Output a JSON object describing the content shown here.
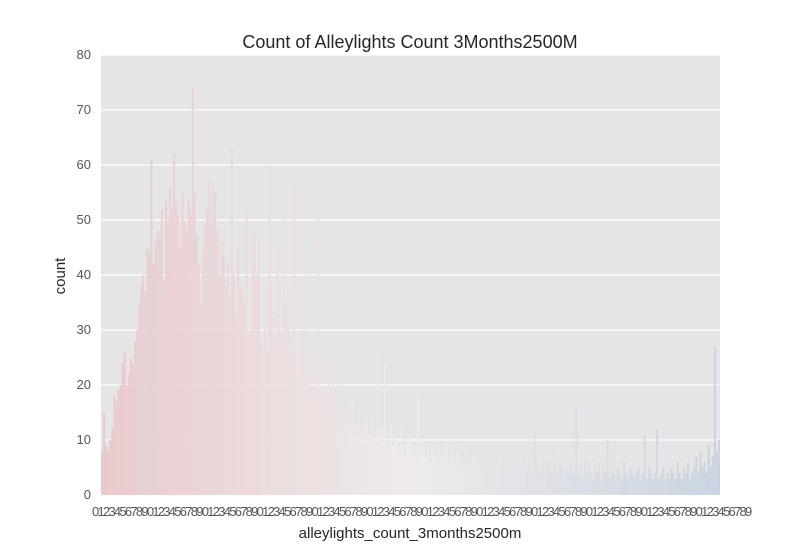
{
  "chart_data": {
    "type": "bar",
    "title": "Count of Alleylights Count 3Months2500M",
    "xlabel": "alleylights_count_3months2500m",
    "ylabel": "count",
    "ylim": [
      0,
      80
    ],
    "yticks": [
      0,
      10,
      20,
      30,
      40,
      50,
      60,
      70,
      80
    ],
    "x_tick_labels_note": "dense overlapping tick labels (unreadable)",
    "grid": true,
    "legend": "none",
    "values": [
      8,
      15,
      9,
      8,
      10,
      12,
      18,
      17,
      19,
      20,
      24,
      26,
      20,
      22,
      25,
      24,
      28,
      30,
      35,
      38,
      40,
      37,
      45,
      44,
      61,
      42,
      46,
      48,
      47,
      52,
      39,
      54,
      50,
      56,
      52,
      62,
      53,
      51,
      45,
      55,
      50,
      48,
      54,
      51,
      74,
      55,
      47,
      42,
      35,
      44,
      49,
      52,
      57,
      50,
      56,
      55,
      48,
      40,
      46,
      44,
      38,
      42,
      36,
      63,
      40,
      33,
      45,
      38,
      37,
      35,
      52,
      29,
      30,
      42,
      48,
      40,
      47,
      28,
      25,
      31,
      26,
      60,
      38,
      32,
      27,
      45,
      33,
      29,
      50,
      35,
      38,
      30,
      28,
      57,
      26,
      22,
      24,
      30,
      25,
      45,
      20,
      25,
      18,
      22,
      17,
      55,
      15,
      20,
      19,
      18,
      25,
      16,
      22,
      14,
      20,
      18,
      26,
      12,
      15,
      14,
      17,
      13,
      18,
      11,
      12,
      16,
      10,
      13,
      15,
      12,
      11,
      14,
      10,
      9,
      26,
      11,
      12,
      24,
      10,
      8,
      13,
      9,
      11,
      10,
      8,
      12,
      9,
      7,
      10,
      11,
      8,
      9,
      7,
      18,
      8,
      10,
      9,
      7,
      8,
      6,
      9,
      8,
      7,
      10,
      6,
      8,
      7,
      9,
      6,
      7,
      10,
      6,
      8,
      7,
      9,
      5,
      8,
      6,
      7,
      5,
      8,
      7,
      6,
      9,
      5,
      7,
      6,
      8,
      5,
      6,
      7,
      5,
      9,
      6,
      5,
      7,
      6,
      4,
      7,
      5,
      6,
      8,
      5,
      6,
      4,
      7,
      5,
      6,
      4,
      5,
      12,
      6,
      4,
      5,
      7,
      4,
      6,
      5,
      4,
      8,
      5,
      4,
      6,
      5,
      3,
      5,
      4,
      6,
      4,
      5,
      16,
      4,
      5,
      3,
      6,
      4,
      5,
      4,
      3,
      5,
      4,
      6,
      3,
      5,
      4,
      10,
      3,
      5,
      4,
      3,
      5,
      4,
      3,
      6,
      4,
      3,
      5,
      4,
      3,
      4,
      5,
      3,
      4,
      11,
      3,
      5,
      4,
      3,
      4,
      12,
      3,
      4,
      5,
      3,
      4,
      3,
      5,
      4,
      3,
      6,
      4,
      3,
      5,
      4,
      6,
      3,
      4,
      5,
      7,
      4,
      8,
      5,
      6,
      4,
      9,
      5,
      7,
      27,
      8,
      10
    ]
  }
}
